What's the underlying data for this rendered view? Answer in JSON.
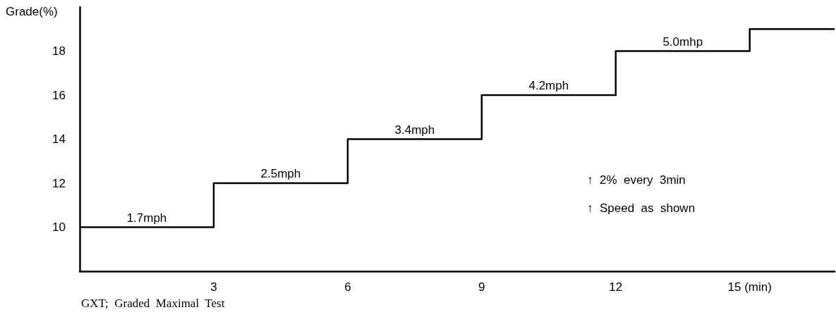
{
  "chart_data": {
    "type": "step",
    "ylabel": "Grade(%)",
    "x": [
      0,
      3,
      6,
      9,
      12,
      15,
      16.9
    ],
    "series": [
      {
        "color": "#000000",
        "values": [
          10,
          12,
          14,
          16,
          18,
          19,
          19
        ]
      }
    ],
    "xlim": [
      0,
      16.9
    ],
    "xticks": [
      3,
      6,
      9,
      12,
      {
        "value": 15,
        "label": "15 (min)"
      }
    ],
    "ylim": [
      8,
      20
    ],
    "yticks": [
      10,
      12,
      14,
      16,
      18
    ],
    "grid": false,
    "marker": "none",
    "line_style": "solid",
    "annotations": [
      {
        "text": "1.7mph",
        "x": 1.5,
        "y": 10
      },
      {
        "text": "2.5mph",
        "x": 4.5,
        "y": 12
      },
      {
        "text": "3.4mph",
        "x": 7.5,
        "y": 14
      },
      {
        "text": "4.2mph",
        "x": 10.5,
        "y": 16
      },
      {
        "text": "5.0mhp",
        "x": 13.5,
        "y": 18
      },
      "↑  2%  every  3min",
      "↑  Speed  as  shown",
      "GXT;  Graded  Maximal  Test"
    ]
  }
}
